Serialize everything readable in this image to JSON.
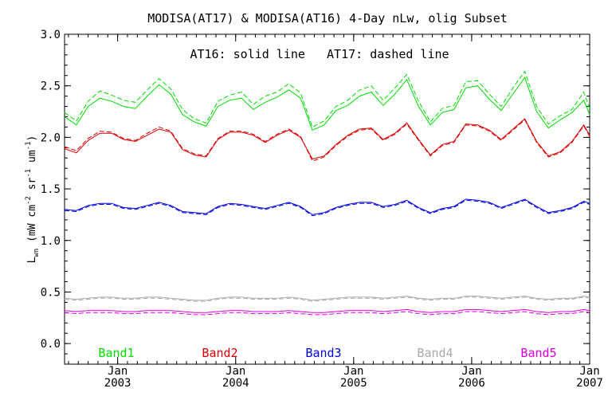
{
  "chart_data": {
    "type": "line",
    "title": "MODISA(AT17) & MODISA(AT16) 4-Day nLw, olig Subset",
    "annotation": "AT16: solid line   AT17: dashed line",
    "ylabel_main": "L",
    "ylabel_sub": "wn",
    "ylabel_units": " (mW cm",
    "ylabel_sup1": "-2",
    "ylabel_mid": " sr",
    "ylabel_sup2": "-1",
    "ylabel_end": " um",
    "ylabel_sup3": "-1",
    "ylabel_close": ")",
    "ylim": [
      -0.2,
      3.0
    ],
    "xlim": [
      2002.55,
      2007.0
    ],
    "y_ticks": [
      "0.0",
      "0.5",
      "1.0",
      "1.5",
      "2.0",
      "2.5",
      "3.0"
    ],
    "x_ticks": [
      {
        "month": "Jan",
        "year": "2003",
        "x": 2003.0
      },
      {
        "month": "Jan",
        "year": "2004",
        "x": 2004.0
      },
      {
        "month": "Jan",
        "year": "2005",
        "x": 2005.0
      },
      {
        "month": "Jan",
        "year": "2006",
        "x": 2006.0
      },
      {
        "month": "Jan",
        "year": "2007",
        "x": 2007.0
      }
    ],
    "x": [
      2002.55,
      2002.65,
      2002.75,
      2002.85,
      2002.95,
      2003.05,
      2003.15,
      2003.25,
      2003.35,
      2003.45,
      2003.55,
      2003.65,
      2003.75,
      2003.85,
      2003.95,
      2004.05,
      2004.15,
      2004.25,
      2004.35,
      2004.45,
      2004.55,
      2004.65,
      2004.75,
      2004.85,
      2004.95,
      2005.05,
      2005.15,
      2005.25,
      2005.35,
      2005.45,
      2005.55,
      2005.65,
      2005.75,
      2005.85,
      2005.95,
      2006.05,
      2006.15,
      2006.25,
      2006.35,
      2006.45,
      2006.55,
      2006.65,
      2006.75,
      2006.85,
      2006.95,
      2007.0
    ],
    "series": [
      {
        "name": "Band1",
        "color": "#00dd00",
        "at16": [
          2.2,
          2.12,
          2.3,
          2.38,
          2.35,
          2.3,
          2.28,
          2.4,
          2.51,
          2.42,
          2.22,
          2.15,
          2.11,
          2.3,
          2.36,
          2.38,
          2.27,
          2.34,
          2.39,
          2.46,
          2.38,
          2.07,
          2.12,
          2.26,
          2.31,
          2.4,
          2.44,
          2.31,
          2.42,
          2.56,
          2.3,
          2.12,
          2.24,
          2.27,
          2.48,
          2.5,
          2.37,
          2.26,
          2.42,
          2.58,
          2.25,
          2.09,
          2.17,
          2.24,
          2.36,
          2.22
        ],
        "at17": [
          2.24,
          2.16,
          2.35,
          2.45,
          2.41,
          2.36,
          2.34,
          2.46,
          2.57,
          2.47,
          2.27,
          2.18,
          2.14,
          2.35,
          2.41,
          2.44,
          2.32,
          2.4,
          2.44,
          2.52,
          2.43,
          2.1,
          2.16,
          2.3,
          2.36,
          2.46,
          2.5,
          2.36,
          2.48,
          2.61,
          2.35,
          2.15,
          2.28,
          2.31,
          2.54,
          2.55,
          2.42,
          2.3,
          2.48,
          2.64,
          2.3,
          2.13,
          2.21,
          2.27,
          2.44,
          2.28
        ]
      },
      {
        "name": "Band2",
        "color": "#dd0000",
        "at16": [
          1.89,
          1.85,
          1.97,
          2.04,
          2.04,
          1.98,
          1.96,
          2.02,
          2.08,
          2.05,
          1.88,
          1.83,
          1.81,
          1.98,
          2.05,
          2.05,
          2.02,
          1.95,
          2.02,
          2.07,
          2.0,
          1.79,
          1.82,
          1.93,
          2.02,
          2.08,
          2.09,
          1.98,
          2.04,
          2.14,
          1.98,
          1.83,
          1.93,
          1.96,
          2.13,
          2.12,
          2.07,
          1.98,
          2.08,
          2.18,
          1.96,
          1.82,
          1.86,
          1.96,
          2.12,
          2.02
        ],
        "at17": [
          1.91,
          1.87,
          1.99,
          2.06,
          2.05,
          1.99,
          1.97,
          2.04,
          2.1,
          2.06,
          1.89,
          1.84,
          1.82,
          1.99,
          2.06,
          2.06,
          2.03,
          1.96,
          2.03,
          2.08,
          2.01,
          1.77,
          1.81,
          1.92,
          2.01,
          2.07,
          2.08,
          1.97,
          2.03,
          2.13,
          1.97,
          1.82,
          1.92,
          1.95,
          2.12,
          2.11,
          2.06,
          1.97,
          2.07,
          2.17,
          1.95,
          1.81,
          1.85,
          1.95,
          2.11,
          2.01
        ]
      },
      {
        "name": "Band3",
        "color": "#0000dd",
        "at16": [
          1.3,
          1.29,
          1.34,
          1.36,
          1.36,
          1.32,
          1.31,
          1.34,
          1.37,
          1.34,
          1.28,
          1.27,
          1.26,
          1.33,
          1.36,
          1.35,
          1.33,
          1.31,
          1.34,
          1.37,
          1.33,
          1.25,
          1.27,
          1.32,
          1.35,
          1.37,
          1.37,
          1.33,
          1.35,
          1.39,
          1.32,
          1.27,
          1.31,
          1.33,
          1.4,
          1.39,
          1.37,
          1.32,
          1.36,
          1.4,
          1.33,
          1.27,
          1.29,
          1.32,
          1.38,
          1.36
        ],
        "at17": [
          1.29,
          1.28,
          1.33,
          1.35,
          1.35,
          1.31,
          1.3,
          1.33,
          1.36,
          1.33,
          1.27,
          1.26,
          1.25,
          1.32,
          1.35,
          1.34,
          1.32,
          1.3,
          1.33,
          1.36,
          1.32,
          1.24,
          1.26,
          1.31,
          1.34,
          1.36,
          1.36,
          1.32,
          1.34,
          1.38,
          1.31,
          1.26,
          1.3,
          1.32,
          1.39,
          1.38,
          1.36,
          1.31,
          1.35,
          1.39,
          1.32,
          1.26,
          1.28,
          1.31,
          1.37,
          1.35
        ]
      },
      {
        "name": "Band4",
        "color": "#aaaaaa",
        "at16": [
          0.44,
          0.43,
          0.44,
          0.45,
          0.45,
          0.44,
          0.44,
          0.45,
          0.45,
          0.44,
          0.43,
          0.42,
          0.42,
          0.44,
          0.45,
          0.45,
          0.44,
          0.44,
          0.44,
          0.45,
          0.44,
          0.42,
          0.43,
          0.44,
          0.45,
          0.45,
          0.45,
          0.44,
          0.45,
          0.46,
          0.44,
          0.43,
          0.44,
          0.44,
          0.46,
          0.46,
          0.45,
          0.44,
          0.45,
          0.46,
          0.44,
          0.43,
          0.44,
          0.44,
          0.46,
          0.45
        ],
        "at17": [
          0.43,
          0.42,
          0.43,
          0.44,
          0.44,
          0.43,
          0.43,
          0.44,
          0.44,
          0.43,
          0.42,
          0.41,
          0.41,
          0.43,
          0.44,
          0.44,
          0.43,
          0.43,
          0.43,
          0.44,
          0.43,
          0.41,
          0.42,
          0.43,
          0.44,
          0.44,
          0.44,
          0.43,
          0.44,
          0.45,
          0.43,
          0.42,
          0.43,
          0.43,
          0.45,
          0.45,
          0.44,
          0.43,
          0.44,
          0.45,
          0.43,
          0.42,
          0.43,
          0.43,
          0.45,
          0.44
        ]
      },
      {
        "name": "Band5",
        "color": "#dd00dd",
        "at16": [
          0.32,
          0.31,
          0.32,
          0.32,
          0.32,
          0.31,
          0.31,
          0.32,
          0.32,
          0.32,
          0.31,
          0.3,
          0.3,
          0.31,
          0.32,
          0.32,
          0.31,
          0.31,
          0.31,
          0.32,
          0.31,
          0.3,
          0.3,
          0.31,
          0.32,
          0.32,
          0.32,
          0.31,
          0.32,
          0.33,
          0.31,
          0.3,
          0.31,
          0.31,
          0.33,
          0.33,
          0.32,
          0.31,
          0.32,
          0.33,
          0.31,
          0.3,
          0.31,
          0.31,
          0.33,
          0.32
        ],
        "at17": [
          0.3,
          0.29,
          0.3,
          0.3,
          0.3,
          0.29,
          0.29,
          0.3,
          0.3,
          0.3,
          0.29,
          0.28,
          0.28,
          0.29,
          0.3,
          0.3,
          0.29,
          0.29,
          0.29,
          0.3,
          0.29,
          0.28,
          0.28,
          0.29,
          0.3,
          0.3,
          0.3,
          0.29,
          0.3,
          0.31,
          0.29,
          0.28,
          0.29,
          0.29,
          0.31,
          0.31,
          0.3,
          0.29,
          0.3,
          0.31,
          0.29,
          0.28,
          0.29,
          0.29,
          0.31,
          0.3
        ]
      }
    ]
  }
}
